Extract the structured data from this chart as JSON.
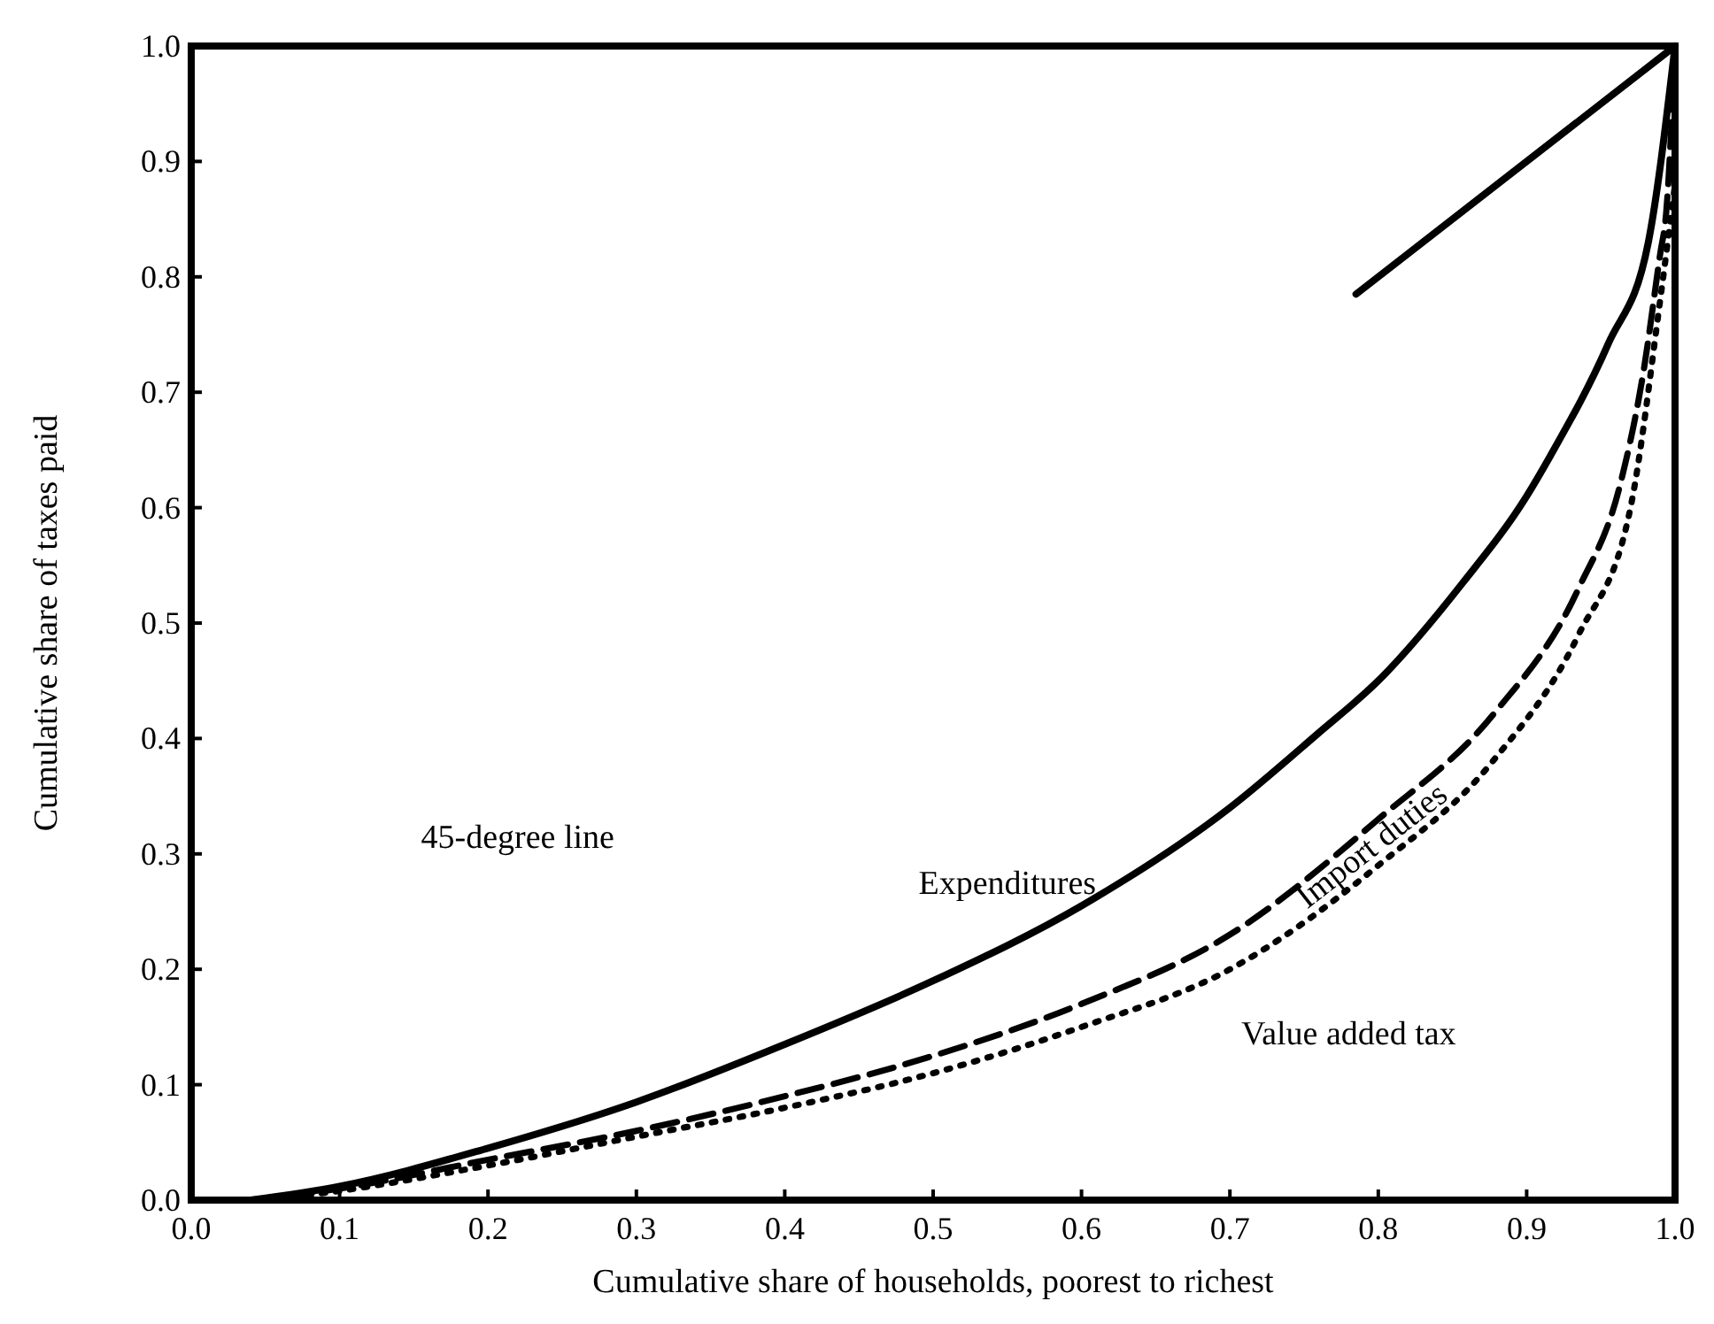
{
  "chart_data": {
    "type": "line",
    "xlabel": "Cumulative share of households, poorest to richest",
    "ylabel": "Cumulative share of taxes paid",
    "xlim": [
      0,
      1
    ],
    "ylim": [
      0,
      1
    ],
    "xticks": [
      {
        "value": 0,
        "label": "0.0"
      },
      0.1,
      0.2,
      0.3,
      0.4,
      0.5,
      0.6,
      0.7,
      0.8,
      0.9,
      {
        "value": 1,
        "label": "1.0"
      }
    ],
    "yticks": [
      {
        "value": 0,
        "label": "0.0"
      },
      0.1,
      0.2,
      0.3,
      0.4,
      0.5,
      0.6,
      0.7,
      0.8,
      0.9,
      {
        "value": 1,
        "label": "1.0"
      }
    ],
    "grid": false,
    "marker": "none",
    "annotations": [
      "45-degree line"
    ],
    "series": [
      {
        "color": "#000000",
        "line_style": "solid",
        "x": [
          0.785,
          1.0
        ],
        "values": [
          0.785,
          1.0
        ]
      },
      {
        "name": "Expenditures",
        "color": "#000000",
        "line_style": "solid",
        "x": [
          0.04,
          0.1,
          0.2,
          0.3,
          0.4,
          0.5,
          0.6,
          0.7,
          0.76,
          0.8,
          0.857,
          0.9,
          0.916,
          0.955,
          0.982,
          1.0
        ],
        "values": [
          0,
          0.012,
          0.045,
          0.085,
          0.135,
          0.19,
          0.255,
          0.34,
          0.405,
          0.45,
          0.535,
          0.61,
          0.645,
          0.742,
          0.83,
          1.0
        ]
      },
      {
        "name": "Import duties",
        "color": "#000000",
        "line_style": "dashed",
        "x": [
          0.04,
          0.1,
          0.2,
          0.3,
          0.4,
          0.5,
          0.6,
          0.7,
          0.8,
          0.877,
          0.935,
          0.963,
          0.979,
          0.99,
          0.994,
          1.0
        ],
        "values": [
          0,
          0.01,
          0.035,
          0.06,
          0.09,
          0.125,
          0.17,
          0.23,
          0.33,
          0.42,
          0.53,
          0.62,
          0.72,
          0.82,
          0.855,
          1.0
        ]
      },
      {
        "name": "Value added tax",
        "color": "#000000",
        "line_style": "dotted",
        "x": [
          0.05,
          0.1,
          0.2,
          0.3,
          0.4,
          0.5,
          0.6,
          0.7,
          0.8,
          0.877,
          0.935,
          0.97,
          0.99,
          1.0
        ],
        "values": [
          0,
          0.008,
          0.03,
          0.055,
          0.08,
          0.11,
          0.15,
          0.2,
          0.29,
          0.38,
          0.49,
          0.6,
          0.78,
          0.88
        ]
      }
    ]
  }
}
